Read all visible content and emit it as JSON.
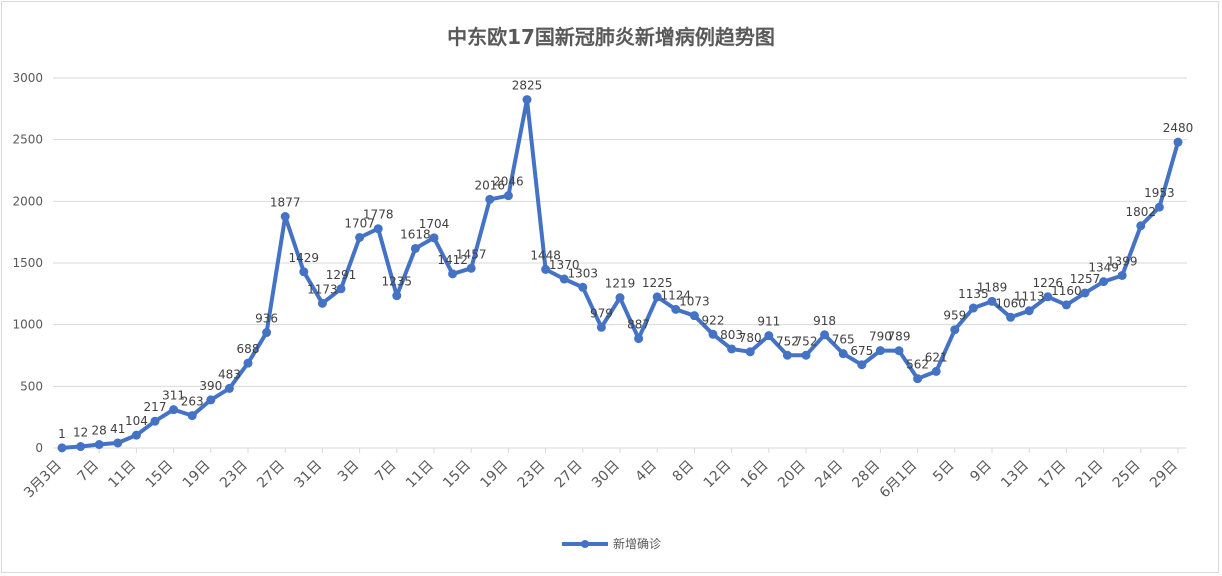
{
  "chart_data": {
    "type": "line",
    "title": "中东欧17国新冠肺炎新增病例趋势图",
    "xlabel": "",
    "ylabel": "",
    "ylim": [
      0,
      3000
    ],
    "yticks": [
      0,
      500,
      1000,
      1500,
      2000,
      2500,
      3000
    ],
    "grid": true,
    "legend_position": "bottom",
    "series_color": "#4472C4",
    "tick_labels": [
      "3月3日",
      "7日",
      "11日",
      "15日",
      "19日",
      "23日",
      "27日",
      "31日",
      "3日",
      "7日",
      "11日",
      "15日",
      "19日",
      "23日",
      "27日",
      "30日",
      "4日",
      "8日",
      "12日",
      "16日",
      "20日",
      "24日",
      "28日",
      "6月1日",
      "5日",
      "9日",
      "13日",
      "17日",
      "21日",
      "25日",
      "29日"
    ],
    "series": [
      {
        "name": "新增确诊",
        "values": [
          1,
          12,
          28,
          41,
          104,
          217,
          311,
          263,
          390,
          483,
          688,
          936,
          1877,
          1429,
          1173,
          1291,
          1707,
          1778,
          1235,
          1618,
          1704,
          1412,
          1457,
          2016,
          2046,
          2825,
          1448,
          1370,
          1303,
          979,
          1219,
          887,
          1225,
          1124,
          1073,
          922,
          803,
          780,
          911,
          752,
          752,
          918,
          765,
          675,
          790,
          789,
          562,
          621,
          959,
          1135,
          1189,
          1060,
          1113,
          1226,
          1160,
          1257,
          1349,
          1399,
          1802,
          1953,
          2480
        ]
      }
    ]
  }
}
